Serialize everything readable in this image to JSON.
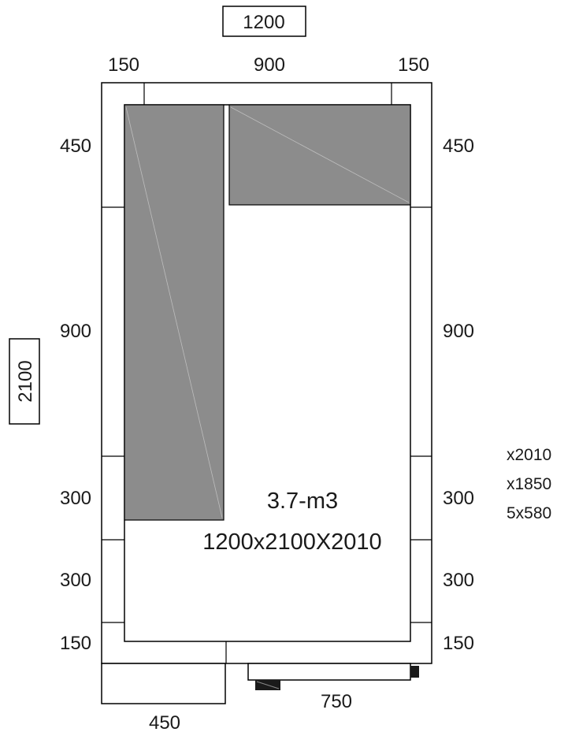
{
  "total_width": "1200",
  "total_depth": "2100",
  "top_dims": [
    "150",
    "900",
    "150"
  ],
  "left_dims": [
    "450",
    "900",
    "300",
    "300",
    "150"
  ],
  "right_dims": [
    "450",
    "900",
    "300",
    "300",
    "150"
  ],
  "bottom_left_dim": "450",
  "door_dim": "750",
  "volume": "3.7-m3",
  "dimensions": "1200x2100X2010",
  "side_notes": [
    "x2010",
    "x1850",
    "5x580"
  ],
  "colors": {
    "line": "#000000",
    "shelf": "#8c8c8c",
    "background": "#ffffff"
  }
}
